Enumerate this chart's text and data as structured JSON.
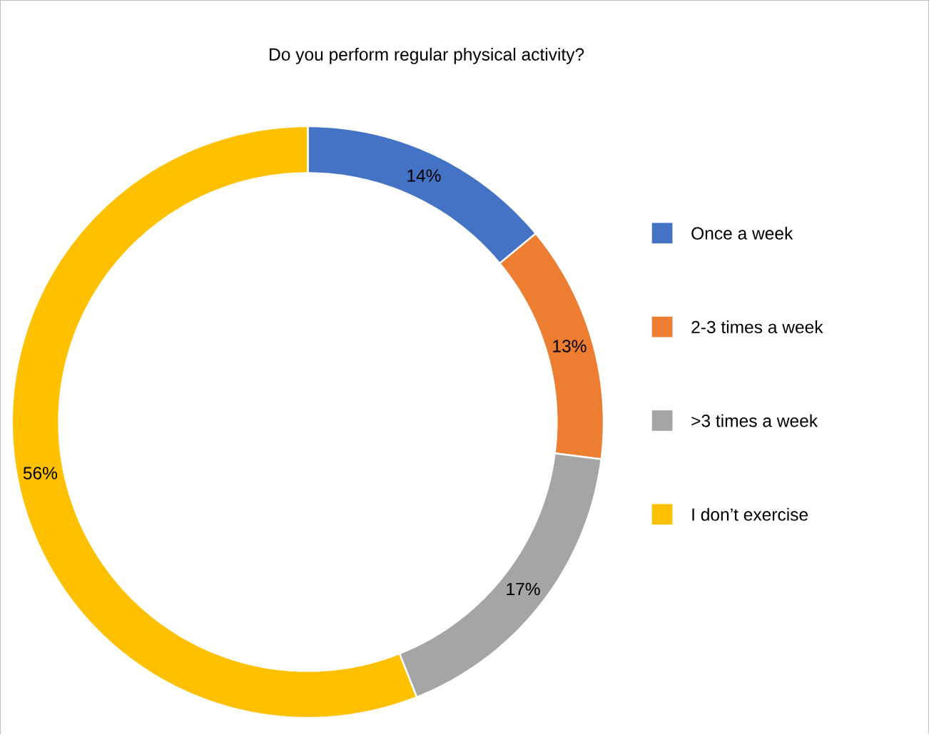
{
  "chart_data": {
    "type": "donut",
    "title": "Do you perform regular physical activity?",
    "categories": [
      "Once a week",
      "2-3 times a week",
      ">3 times a week",
      "I don’t exercise"
    ],
    "values": [
      14,
      13,
      17,
      56
    ],
    "value_labels": [
      "14%",
      "13%",
      "17%",
      "56%"
    ],
    "colors": [
      "#4472c4",
      "#ed7d31",
      "#a5a5a5",
      "#ffc000"
    ],
    "legend": "right"
  }
}
